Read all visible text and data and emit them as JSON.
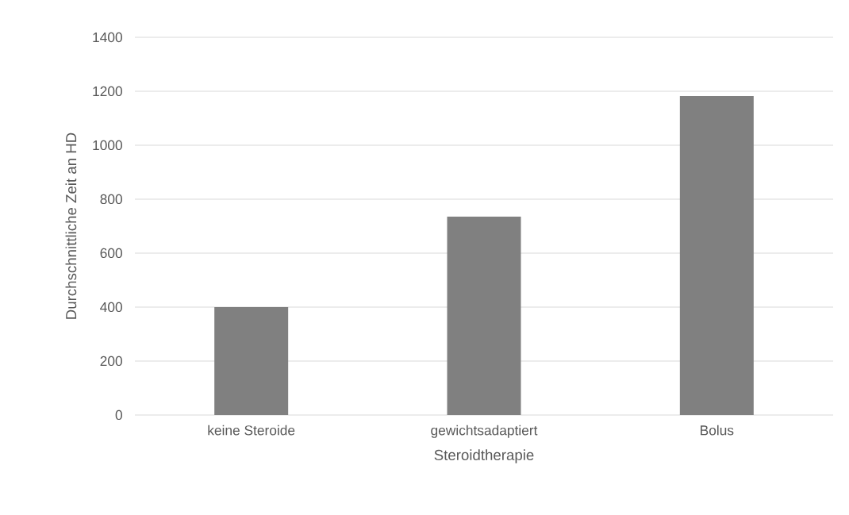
{
  "chart_data": {
    "type": "bar",
    "xlabel": "Steroidtherapie",
    "ylabel": "Durchschnittliche Zeit an HD",
    "categories": [
      "keine Steroide",
      "gewichtsadaptiert",
      "Bolus"
    ],
    "values": [
      400,
      735,
      1182
    ],
    "color": "#808080",
    "ylim": [
      0,
      1400
    ],
    "yticks": [
      0,
      200,
      400,
      600,
      800,
      1000,
      1200,
      1400
    ],
    "grid": "y"
  }
}
